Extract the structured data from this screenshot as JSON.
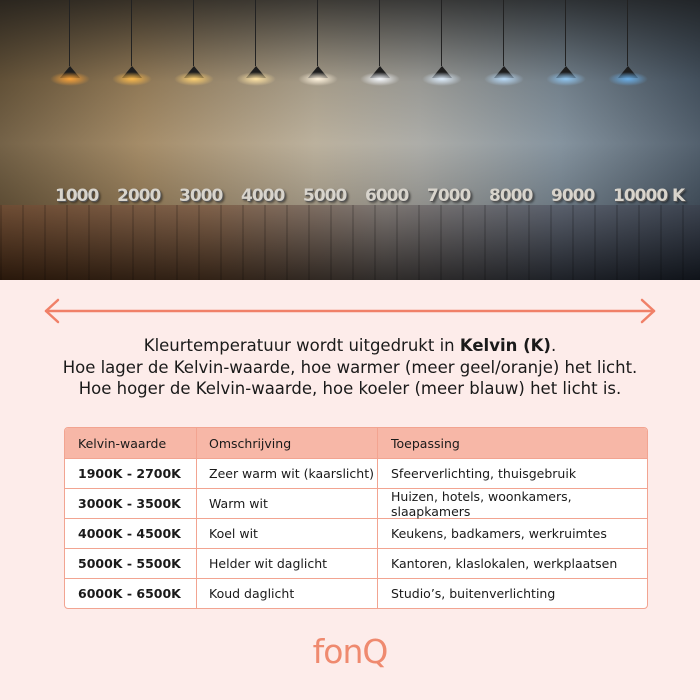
{
  "photo": {
    "kelvin_labels": [
      "1000",
      "2000",
      "3000",
      "4000",
      "5000",
      "6000",
      "7000",
      "8000",
      "9000",
      "10000 K"
    ],
    "lamp_colors": [
      "#f7a23a",
      "#f8b84c",
      "#fbcf72",
      "#fde2a4",
      "#fff3de",
      "#f4f7fb",
      "#dcebfa",
      "#b7d8f5",
      "#8fc4ee",
      "#6aaee6"
    ]
  },
  "arrow_color": "#f08068",
  "intro": {
    "line1_prefix": "Kleurtemperatuur wordt uitgedrukt in ",
    "line1_bold": "Kelvin (K)",
    "line1_suffix": ".",
    "line2": "Hoe lager de Kelvin-waarde, hoe warmer (meer geel/oranje) het licht.",
    "line3": "Hoe hoger de Kelvin-waarde, hoe koeler (meer blauw) het licht is."
  },
  "table": {
    "headers": [
      "Kelvin-waarde",
      "Omschrijving",
      "Toepassing"
    ],
    "rows": [
      [
        "1900K - 2700K",
        "Zeer warm wit (kaarslicht)",
        "Sfeerverlichting, thuisgebruik"
      ],
      [
        "3000K - 3500K",
        "Warm wit",
        "Huizen, hotels, woonkamers, slaapkamers"
      ],
      [
        "4000K - 4500K",
        "Koel wit",
        "Keukens, badkamers, werkruimtes"
      ],
      [
        "5000K - 5500K",
        "Helder wit daglicht",
        "Kantoren, klaslokalen, werkplaatsen"
      ],
      [
        "6000K - 6500K",
        "Koud daglicht",
        "Studio’s, buitenverlichting"
      ]
    ]
  },
  "logo": "fonQ"
}
